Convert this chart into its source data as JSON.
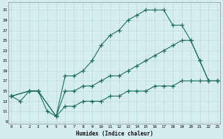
{
  "xlabel": "Humidex (Indice chaleur)",
  "bg_color": "#d6edf0",
  "line_color": "#1a6b5a",
  "grid_color": "#b8d8dc",
  "line1_x": [
    0,
    1,
    2,
    3,
    4,
    5,
    6,
    7,
    8,
    9,
    10,
    11,
    12,
    13,
    14,
    15,
    16,
    17,
    18,
    19,
    20,
    21,
    22,
    23
  ],
  "line1_y": [
    14,
    13,
    15,
    15,
    11,
    10,
    18,
    18,
    19,
    21,
    24,
    26,
    27,
    29,
    30,
    31,
    31,
    31,
    28,
    28,
    25,
    21,
    17,
    17
  ],
  "line2_x": [
    0,
    2,
    3,
    5,
    6,
    7,
    8,
    9,
    10,
    11,
    12,
    13,
    14,
    15,
    16,
    17,
    18,
    19,
    20,
    21,
    22,
    23
  ],
  "line2_y": [
    14,
    15,
    15,
    10,
    15,
    15,
    16,
    16,
    17,
    18,
    18,
    19,
    20,
    21,
    22,
    23,
    24,
    25,
    25,
    21,
    17,
    17
  ],
  "line3_x": [
    0,
    2,
    3,
    5,
    6,
    7,
    8,
    9,
    10,
    11,
    12,
    13,
    14,
    15,
    16,
    17,
    18,
    19,
    20,
    21,
    22,
    23
  ],
  "line3_y": [
    14,
    15,
    15,
    10,
    12,
    12,
    13,
    13,
    13,
    14,
    14,
    15,
    15,
    15,
    16,
    16,
    16,
    17,
    17,
    17,
    17,
    17
  ],
  "yticks": [
    9,
    11,
    13,
    15,
    17,
    19,
    21,
    23,
    25,
    27,
    29,
    31
  ],
  "xticks": [
    0,
    1,
    2,
    3,
    4,
    5,
    6,
    7,
    8,
    9,
    10,
    11,
    12,
    13,
    14,
    15,
    16,
    17,
    18,
    19,
    20,
    21,
    22,
    23
  ],
  "ylim": [
    8.5,
    32.5
  ],
  "xlim": [
    -0.3,
    23.3
  ]
}
